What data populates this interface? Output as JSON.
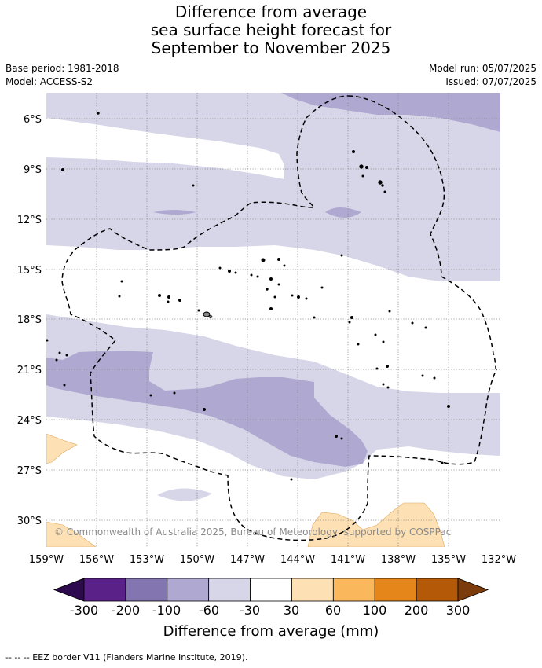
{
  "title": {
    "line1": "Difference from average",
    "line2": "sea surface height forecast for",
    "line3": "September to November 2025"
  },
  "meta": {
    "base_period": "Base period: 1981-2018",
    "model": "Model: ACCESS-S2",
    "model_run": "Model run: 05/07/2025",
    "issued": "Issued: 07/07/2025"
  },
  "map": {
    "lat_labels": [
      "6°S",
      "9°S",
      "12°S",
      "15°S",
      "18°S",
      "21°S",
      "24°S",
      "27°S",
      "30°S"
    ],
    "lon_labels": [
      "159°W",
      "156°W",
      "153°W",
      "150°W",
      "147°W",
      "144°W",
      "141°W",
      "138°W",
      "135°W",
      "132°W"
    ],
    "copyright": "© Commonwealth of Australia 2025, Bureau of Meteorology, supported by COSPPac"
  },
  "colorbar": {
    "title": "Difference from average (mm)",
    "ticks": [
      "-300",
      "-200",
      "-100",
      "-60",
      "-30",
      "30",
      "60",
      "100",
      "200",
      "300"
    ],
    "colors": [
      "#2d0a4e",
      "#5a2189",
      "#8375b0",
      "#afa8d0",
      "#d6d6e8",
      "#ffffff",
      "#fde0b3",
      "#fbb75b",
      "#e5861b",
      "#b45908",
      "#7c3b0a"
    ]
  },
  "footer": {
    "eez_legend": "-- -- -- EEZ border V11 (Flanders Marine Institute, 2019)."
  }
}
